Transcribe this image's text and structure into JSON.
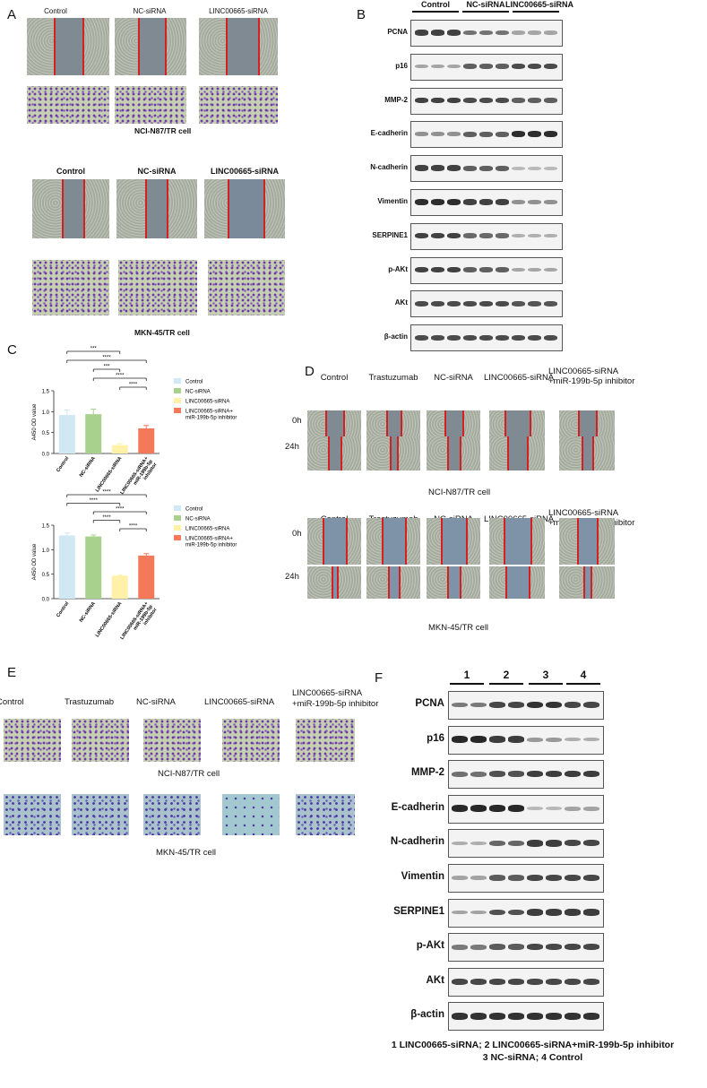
{
  "panels": {
    "A": {
      "letter": "A",
      "top_headers": [
        "Control",
        "NC-siRNA",
        "LINC00665-siRNA"
      ],
      "top_caption": "NCI-N87/TR cell",
      "bottom_headers": [
        "Control",
        "NC-siRNA",
        "LINC00665-siRNA"
      ],
      "bottom_caption": "MKN-45/TR cell"
    },
    "B": {
      "letter": "B",
      "groups": [
        "Control",
        "NC-siRNA",
        "LINC00665-siRNA"
      ],
      "proteins": [
        "PCNA",
        "p16",
        "MMP-2",
        "E-cadherin",
        "N-cadherin",
        "Vimentin",
        "SERPINE1",
        "p-AKt",
        "AKt",
        "β-actin"
      ],
      "intensity": [
        [
          0.85,
          0.85,
          0.85,
          0.6,
          0.6,
          0.6,
          0.35,
          0.35,
          0.35
        ],
        [
          0.35,
          0.35,
          0.35,
          0.7,
          0.7,
          0.7,
          0.8,
          0.8,
          0.8
        ],
        [
          0.85,
          0.85,
          0.85,
          0.8,
          0.8,
          0.8,
          0.7,
          0.7,
          0.7
        ],
        [
          0.45,
          0.45,
          0.45,
          0.7,
          0.7,
          0.7,
          0.95,
          0.95,
          0.95
        ],
        [
          0.85,
          0.85,
          0.85,
          0.7,
          0.7,
          0.7,
          0.25,
          0.25,
          0.25
        ],
        [
          0.95,
          0.95,
          0.95,
          0.85,
          0.85,
          0.85,
          0.45,
          0.45,
          0.45
        ],
        [
          0.85,
          0.85,
          0.85,
          0.65,
          0.65,
          0.65,
          0.3,
          0.3,
          0.3
        ],
        [
          0.85,
          0.85,
          0.85,
          0.7,
          0.7,
          0.7,
          0.35,
          0.35,
          0.35
        ],
        [
          0.8,
          0.8,
          0.8,
          0.8,
          0.8,
          0.8,
          0.75,
          0.75,
          0.75
        ],
        [
          0.8,
          0.8,
          0.8,
          0.8,
          0.8,
          0.8,
          0.8,
          0.8,
          0.8
        ]
      ]
    },
    "C": {
      "letter": "C",
      "chart_data": [
        {
          "type": "bar",
          "categories": [
            "Control",
            "NC-siRNA",
            "LINC00665-siRNA",
            "LINC00665-siRNA+ miR-199b-5p inhibitor"
          ],
          "values": [
            0.92,
            0.94,
            0.2,
            0.6
          ],
          "errors": [
            0.12,
            0.12,
            0.03,
            0.07
          ],
          "colors": [
            "#cfe8f3",
            "#a9d18e",
            "#fff2a8",
            "#f4795b"
          ],
          "ylabel": "A450 OD value",
          "ylim": [
            0,
            1.5
          ],
          "yticks": [
            "0.0",
            "0.5",
            "1.0",
            "1.5"
          ],
          "legend": [
            "Control",
            "NC-siRNA",
            "LINC00665-siRNA",
            "LINC00665-siRNA+ miR-199b-5p inhibitor"
          ],
          "legend_position": "right",
          "significance": [
            {
              "from": 0,
              "to": 2,
              "label": "***"
            },
            {
              "from": 0,
              "to": 3,
              "label": "****"
            },
            {
              "from": 1,
              "to": 2,
              "label": "***"
            },
            {
              "from": 1,
              "to": 3,
              "label": "****"
            },
            {
              "from": 2,
              "to": 3,
              "label": "****"
            }
          ]
        },
        {
          "type": "bar",
          "categories": [
            "Control",
            "NC-siRNA",
            "LINC00665-siRNA",
            "LINC00665-siRNA+ miR-199b-5p inhibitor"
          ],
          "values": [
            1.29,
            1.27,
            0.47,
            0.88
          ],
          "errors": [
            0.05,
            0.03,
            0.01,
            0.04
          ],
          "colors": [
            "#cfe8f3",
            "#a9d18e",
            "#fff2a8",
            "#f4795b"
          ],
          "ylabel": "A450 OD value",
          "ylim": [
            0,
            1.5
          ],
          "yticks": [
            "0.0",
            "0.5",
            "1.0",
            "1.5"
          ],
          "legend": [
            "Control",
            "NC-siRNA",
            "LINC00665-siRNA",
            "LINC00665-siRNA+ miR-199b-5p inhibitor"
          ],
          "legend_position": "right",
          "significance": [
            {
              "from": 0,
              "to": 3,
              "label": "****"
            },
            {
              "from": 0,
              "to": 2,
              "label": "****"
            },
            {
              "from": 1,
              "to": 3,
              "label": "****"
            },
            {
              "from": 1,
              "to": 2,
              "label": "****"
            },
            {
              "from": 2,
              "to": 3,
              "label": "****"
            }
          ]
        }
      ]
    },
    "D": {
      "letter": "D",
      "headers": [
        "Control",
        "Trastuzumab",
        "NC-siRNA",
        "LINC00665-siRNA",
        "LINC00665-siRNA",
        "+miR-199b-5p inhibitor"
      ],
      "rows": [
        "0h",
        "24h"
      ],
      "top_caption": "NCI-N87/TR cell",
      "bottom_caption": "MKN-45/TR cell"
    },
    "E": {
      "letter": "E",
      "headers": [
        "Control",
        "Trastuzumab",
        "NC-siRNA",
        "LINC00665-siRNA",
        "LINC00665-siRNA",
        "+miR-199b-5p inhibitor"
      ],
      "top_caption": "NCI-N87/TR cell",
      "bottom_caption": "MKN-45/TR cell"
    },
    "F": {
      "letter": "F",
      "groups": [
        "1",
        "2",
        "3",
        "4"
      ],
      "proteins": [
        "PCNA",
        "p16",
        "MMP-2",
        "E-cadherin",
        "N-cadherin",
        "Vimentin",
        "SERPINE1",
        "p-AKt",
        "AKt",
        "β-actin"
      ],
      "intensity": [
        [
          0.55,
          0.55,
          0.8,
          0.8,
          0.9,
          0.9,
          0.8,
          0.8
        ],
        [
          0.95,
          0.95,
          0.85,
          0.85,
          0.4,
          0.4,
          0.3,
          0.3
        ],
        [
          0.6,
          0.6,
          0.75,
          0.75,
          0.85,
          0.85,
          0.85,
          0.85
        ],
        [
          0.95,
          0.95,
          0.95,
          0.95,
          0.25,
          0.25,
          0.35,
          0.35
        ],
        [
          0.3,
          0.3,
          0.65,
          0.65,
          0.85,
          0.85,
          0.8,
          0.8
        ],
        [
          0.35,
          0.35,
          0.7,
          0.7,
          0.8,
          0.8,
          0.8,
          0.8
        ],
        [
          0.35,
          0.35,
          0.75,
          0.75,
          0.85,
          0.85,
          0.85,
          0.85
        ],
        [
          0.55,
          0.55,
          0.7,
          0.7,
          0.8,
          0.8,
          0.8,
          0.8
        ],
        [
          0.8,
          0.8,
          0.8,
          0.8,
          0.8,
          0.8,
          0.8,
          0.8
        ],
        [
          0.9,
          0.9,
          0.9,
          0.9,
          0.9,
          0.9,
          0.9,
          0.9
        ]
      ],
      "footer_line1": "1 LINC00665-siRNA; 2 LINC00665-siRNA+miR-199b-5p inhibitor",
      "footer_line2": "3 NC-siRNA; 4 Control"
    }
  }
}
